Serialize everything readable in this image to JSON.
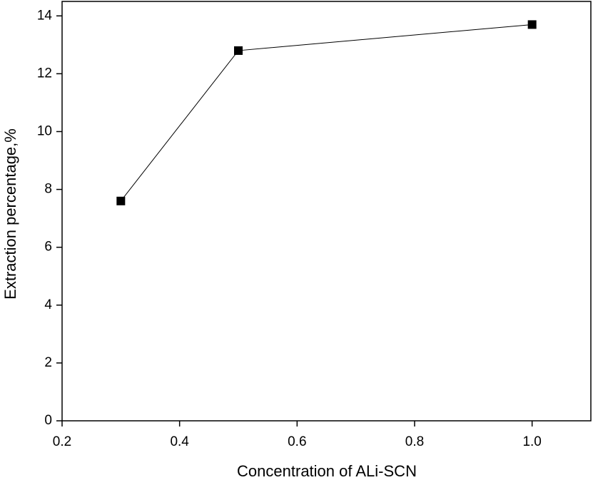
{
  "chart_data": {
    "type": "line",
    "x_label": "Concentration of ALi-SCN",
    "y_label": "Extraction percentage,%",
    "x": [
      0.3,
      0.5,
      1.0
    ],
    "series": [
      {
        "values": [
          7.6,
          12.8,
          13.7
        ],
        "color": "#000000"
      }
    ],
    "xlim": [
      0.2,
      1.1
    ],
    "xticks": [
      0.2,
      0.4,
      0.6,
      0.8,
      {
        "value": 1.0,
        "label": "1.0"
      }
    ],
    "ylim": [
      0,
      14.5
    ],
    "yticks": [
      0,
      2,
      4,
      6,
      8,
      10,
      12,
      14
    ],
    "grid": false
  }
}
